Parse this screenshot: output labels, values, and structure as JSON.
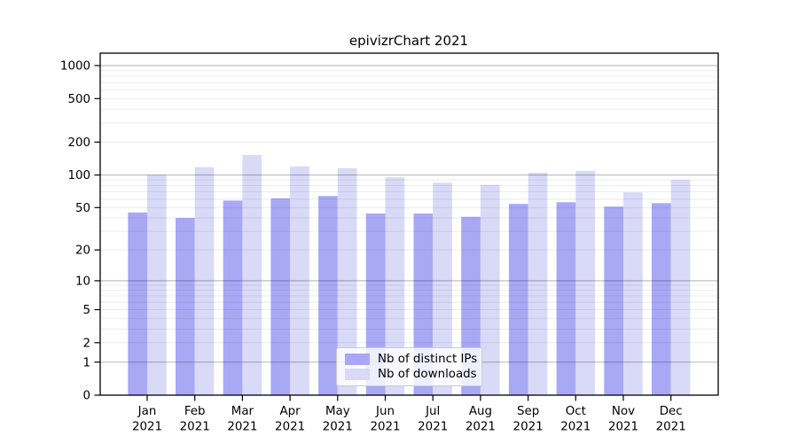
{
  "figure": {
    "background": "#ffffff"
  },
  "chart_data": {
    "type": "bar",
    "title": "epivizrChart 2021",
    "categories": [
      "Jan",
      "Feb",
      "Mar",
      "Apr",
      "May",
      "Jun",
      "Jul",
      "Aug",
      "Sep",
      "Oct",
      "Nov",
      "Dec"
    ],
    "year_label": "2021",
    "series": [
      {
        "name": "Nb of distinct IPs",
        "color": "#a8a8f5",
        "values": [
          45,
          40,
          58,
          61,
          64,
          44,
          44,
          41,
          54,
          56,
          51,
          55
        ]
      },
      {
        "name": "Nb of downloads",
        "color": "#d9d9f8",
        "values": [
          100,
          118,
          152,
          120,
          115,
          95,
          85,
          81,
          105,
          109,
          69,
          90
        ]
      }
    ],
    "yticks": [
      0,
      1,
      2,
      5,
      10,
      20,
      50,
      100,
      200,
      500,
      1000
    ],
    "ylim": [
      0,
      1000
    ],
    "yscale": "log10(1+v)",
    "xlabel": "",
    "ylabel": "",
    "grid": true,
    "legend_position": "bottom-center",
    "colors": {
      "grid_minor": "#ebebeb",
      "grid_major": "#bfbfbf",
      "axis": "#000000",
      "legend_border": "#cccccc"
    }
  }
}
